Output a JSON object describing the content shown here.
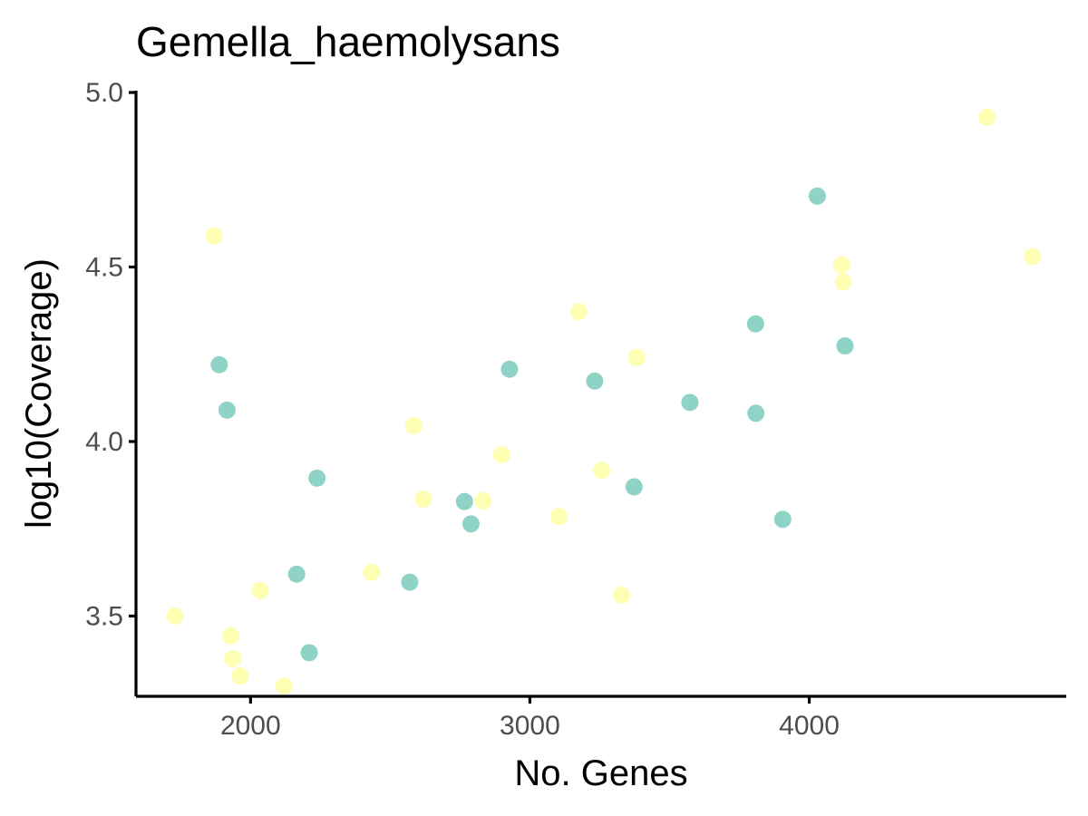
{
  "chart_data": {
    "type": "scatter",
    "title": "Gemella_haemolysans",
    "xlabel": "No. Genes",
    "ylabel": "log10(Coverage)",
    "xlim": [
      1590,
      4920
    ],
    "ylim": [
      3.27,
      5.0
    ],
    "x_ticks": [
      2000,
      3000,
      4000
    ],
    "x_tick_labels": [
      "2000",
      "3000",
      "4000"
    ],
    "y_ticks": [
      3.5,
      4.0,
      4.5,
      5.0
    ],
    "y_tick_labels": [
      "3.5",
      "4.0",
      "4.5",
      "5.0"
    ],
    "grid": false,
    "legend": "none",
    "colors": {
      "teal": "#8fd3c7",
      "yellow": "#ffffb3",
      "axis": "#000000",
      "tick_label": "#4d4d4d"
    },
    "series": [
      {
        "color": "#8fd3c7",
        "points": [
          {
            "x": 1888,
            "y": 4.22
          },
          {
            "x": 1916,
            "y": 4.09
          },
          {
            "x": 2165,
            "y": 3.62
          },
          {
            "x": 2210,
            "y": 3.395
          },
          {
            "x": 2238,
            "y": 3.895
          },
          {
            "x": 2570,
            "y": 3.597
          },
          {
            "x": 2766,
            "y": 3.828
          },
          {
            "x": 2789,
            "y": 3.764
          },
          {
            "x": 2927,
            "y": 4.207
          },
          {
            "x": 3232,
            "y": 4.173
          },
          {
            "x": 3373,
            "y": 3.87
          },
          {
            "x": 3573,
            "y": 4.112
          },
          {
            "x": 3808,
            "y": 4.337
          },
          {
            "x": 3809,
            "y": 4.081
          },
          {
            "x": 3905,
            "y": 3.777
          },
          {
            "x": 4029,
            "y": 4.703
          },
          {
            "x": 4128,
            "y": 4.274
          }
        ]
      },
      {
        "color": "#ffffb3",
        "points": [
          {
            "x": 1729,
            "y": 3.5
          },
          {
            "x": 1869,
            "y": 4.589
          },
          {
            "x": 1930,
            "y": 3.443
          },
          {
            "x": 1937,
            "y": 3.378
          },
          {
            "x": 1963,
            "y": 3.328
          },
          {
            "x": 2035,
            "y": 3.573
          },
          {
            "x": 2120,
            "y": 3.3
          },
          {
            "x": 2433,
            "y": 3.625
          },
          {
            "x": 2584,
            "y": 4.045
          },
          {
            "x": 2619,
            "y": 3.835
          },
          {
            "x": 2833,
            "y": 3.83
          },
          {
            "x": 2899,
            "y": 3.962
          },
          {
            "x": 3104,
            "y": 3.785
          },
          {
            "x": 3175,
            "y": 4.372
          },
          {
            "x": 3257,
            "y": 3.917
          },
          {
            "x": 3328,
            "y": 3.56
          },
          {
            "x": 3382,
            "y": 4.241
          },
          {
            "x": 4116,
            "y": 4.506
          },
          {
            "x": 4122,
            "y": 4.457
          },
          {
            "x": 4637,
            "y": 4.929
          },
          {
            "x": 4799,
            "y": 4.53
          }
        ]
      }
    ]
  }
}
